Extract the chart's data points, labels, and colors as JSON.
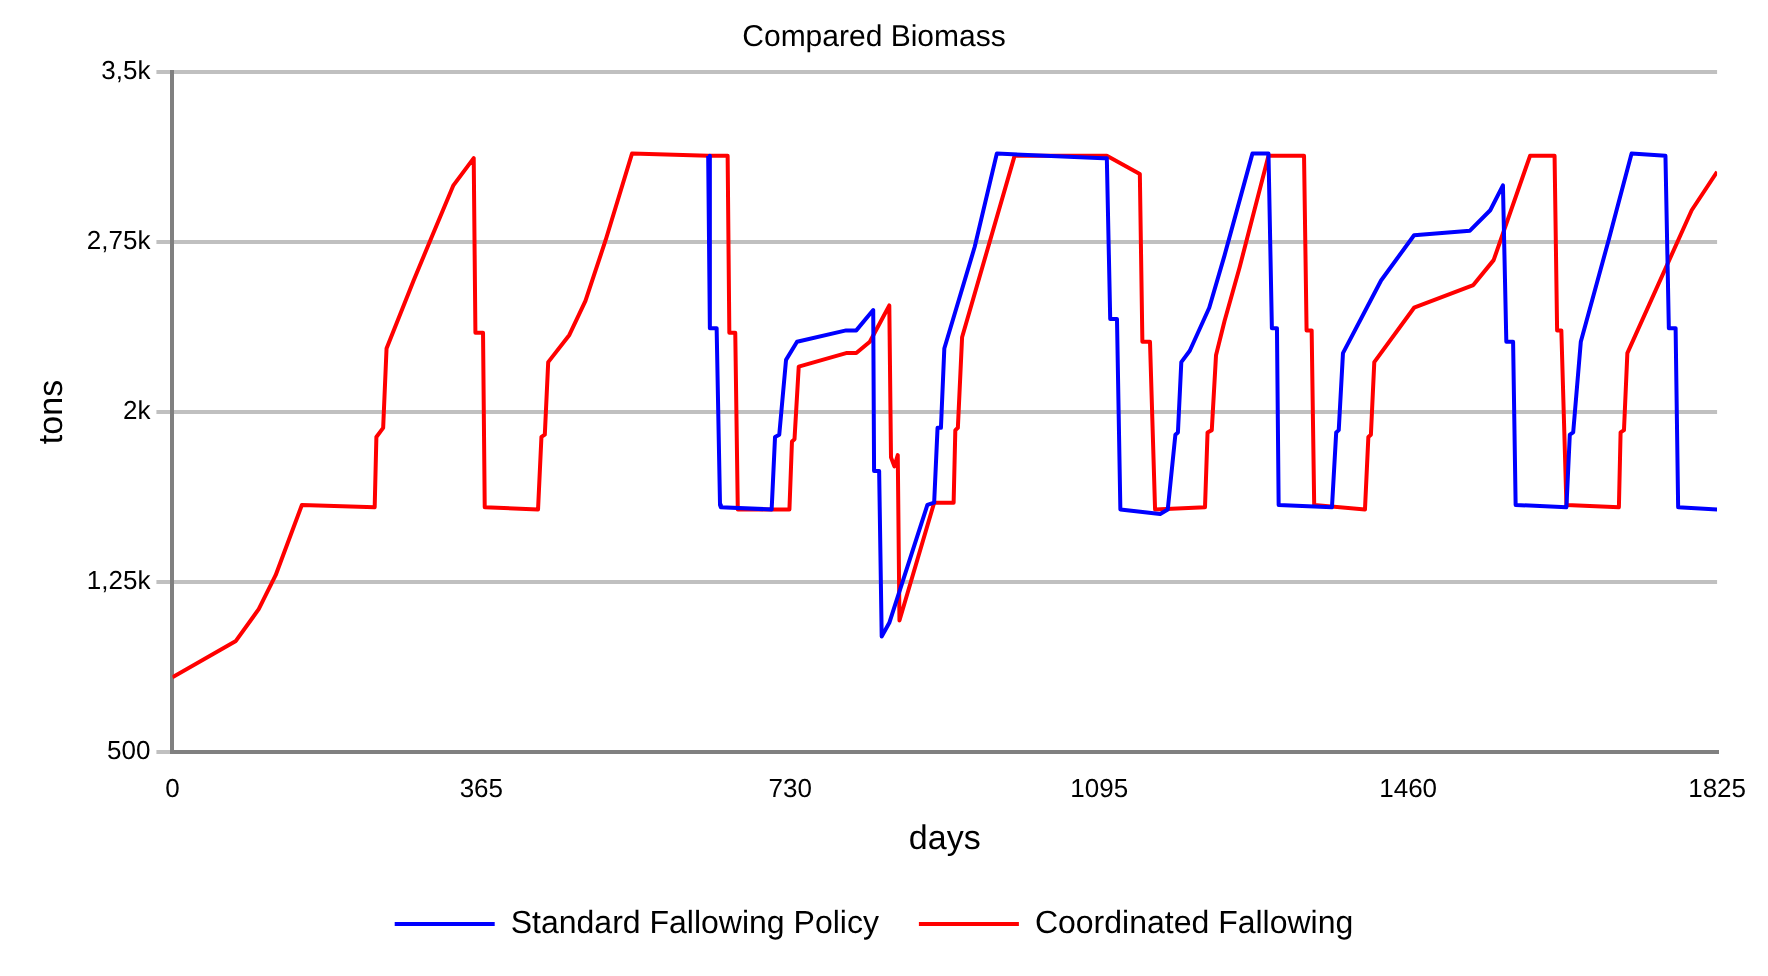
{
  "chart_data": {
    "type": "line",
    "title": "Compared Biomass",
    "xlabel": "days",
    "ylabel": "tons",
    "xlim": [
      0,
      1825
    ],
    "xticks": [
      0,
      365,
      730,
      1095,
      1460,
      1825
    ],
    "ylim": [
      500,
      3500
    ],
    "yticks": [
      {
        "value": 500,
        "label": "500"
      },
      {
        "value": 1250,
        "label": "1,25k"
      },
      {
        "value": 2000,
        "label": "2k"
      },
      {
        "value": 2750,
        "label": "2,75k"
      },
      {
        "value": 3500,
        "label": "3,5k"
      }
    ],
    "grid": "y",
    "legend": "bottom",
    "marker": "none",
    "line_style": "solid",
    "series": [
      {
        "name": "Standard Fallowing Policy",
        "color": "#0000ff",
        "x": [
          633,
          635,
          643,
          647,
          648,
          708,
          712,
          717,
          725,
          738,
          796,
          808,
          828,
          829,
          835,
          838,
          847,
          892,
          900,
          904,
          908,
          912,
          948,
          974,
          1100,
          1104,
          1108,
          1116,
          1120,
          1167,
          1176,
          1185,
          1188,
          1192,
          1202,
          1225,
          1243,
          1276,
          1295,
          1299,
          1305,
          1307,
          1370,
          1375,
          1378,
          1383,
          1428,
          1467,
          1533,
          1557,
          1572,
          1576,
          1584,
          1587,
          1647,
          1651,
          1655,
          1664,
          1697,
          1724,
          1764,
          1768,
          1776,
          1779,
          1825
        ],
        "values": [
          3130,
          2370,
          2370,
          1590,
          1580,
          1570,
          1890,
          1900,
          2230,
          2310,
          2360,
          2360,
          2450,
          1740,
          1740,
          1010,
          1070,
          1590,
          1600,
          1930,
          1930,
          2280,
          2730,
          3140,
          3120,
          3120,
          2410,
          2410,
          1570,
          1550,
          1570,
          1900,
          1910,
          2220,
          2270,
          2460,
          2690,
          3140,
          3140,
          2370,
          2370,
          1590,
          1580,
          1910,
          1920,
          2260,
          2580,
          2780,
          2800,
          2890,
          3000,
          2310,
          2310,
          1590,
          1580,
          1900,
          1910,
          2310,
          2760,
          3140,
          3130,
          2370,
          2370,
          1580,
          1570
        ]
      },
      {
        "name": "Coordinated Fallowing",
        "color": "#ff0000",
        "x": [
          0,
          75,
          102,
          122,
          153,
          239,
          241,
          249,
          253,
          285,
          305,
          332,
          356,
          358,
          367,
          369,
          432,
          436,
          440,
          444,
          469,
          488,
          512,
          543,
          633,
          656,
          658,
          665,
          668,
          729,
          732,
          735,
          740,
          796,
          808,
          824,
          847,
          849,
          853,
          857,
          859,
          900,
          923,
          925,
          928,
          933,
          995,
          1104,
          1143,
          1146,
          1155,
          1161,
          1220,
          1223,
          1228,
          1233,
          1243,
          1261,
          1295,
          1337,
          1340,
          1346,
          1349,
          1409,
          1413,
          1416,
          1420,
          1467,
          1537,
          1561,
          1604,
          1633,
          1636,
          1641,
          1647,
          1709,
          1711,
          1715,
          1719,
          1795,
          1825
        ],
        "values": [
          830,
          990,
          1130,
          1280,
          1590,
          1580,
          1890,
          1930,
          2280,
          2580,
          2760,
          3000,
          3120,
          2350,
          2350,
          1580,
          1570,
          1890,
          1900,
          2220,
          2340,
          2490,
          2760,
          3140,
          3130,
          3130,
          2350,
          2350,
          1570,
          1570,
          1870,
          1880,
          2200,
          2260,
          2260,
          2310,
          2470,
          1800,
          1760,
          1810,
          1080,
          1600,
          1600,
          1920,
          1930,
          2330,
          3130,
          3130,
          3050,
          2310,
          2310,
          1570,
          1580,
          1910,
          1920,
          2250,
          2400,
          2640,
          3130,
          3130,
          2360,
          2360,
          1590,
          1570,
          1890,
          1900,
          2220,
          2460,
          2560,
          2670,
          3130,
          3130,
          2360,
          2360,
          1590,
          1580,
          1910,
          1920,
          2260,
          2890,
          3060
        ]
      }
    ]
  }
}
